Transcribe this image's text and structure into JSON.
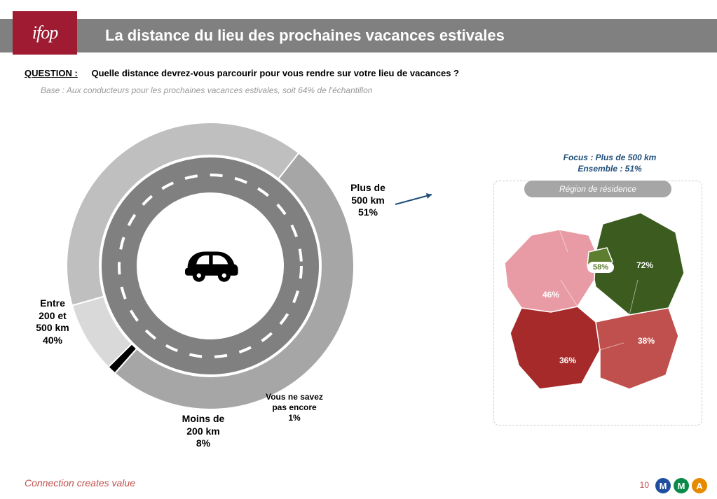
{
  "header": {
    "title": "La distance du lieu des prochaines vacances estivales"
  },
  "logo": {
    "text": "ifop"
  },
  "question": {
    "label": "QUESTION :",
    "text": "Quelle distance devrez-vous parcourir pour vous rendre sur votre lieu de vacances ?",
    "base": "Base : Aux conducteurs pour les prochaines vacances estivales, soit 64% de l'échantillon"
  },
  "donut": {
    "type": "donut",
    "inner_bg": "#ffffff",
    "road_color": "#808080",
    "road_dash_color": "#ffffff",
    "segments": [
      {
        "key": "plus500",
        "label_lines": [
          "Plus de",
          "500 km",
          "51%"
        ],
        "value": 51,
        "color": "#a6a6a6"
      },
      {
        "key": "ne_sait",
        "label_lines": [
          "Vous ne savez",
          "pas encore",
          "1%"
        ],
        "value": 1,
        "color": "#000000",
        "small": true
      },
      {
        "key": "moins200",
        "label_lines": [
          "Moins de",
          "200 km",
          "8%"
        ],
        "value": 8,
        "color": "#d9d9d9"
      },
      {
        "key": "entre",
        "label_lines": [
          "Entre",
          "200 et",
          "500 km",
          "40%"
        ],
        "value": 40,
        "color": "#bfbfbf"
      }
    ],
    "start_angle_deg": -52
  },
  "focus": {
    "line1": "Focus : Plus de 500 km",
    "line2": "Ensemble : 51%",
    "region_title": "Région de résidence"
  },
  "map": {
    "regions": [
      {
        "key": "northeast",
        "label": "72%",
        "color": "#3b5b1f"
      },
      {
        "key": "idf",
        "label": "58%",
        "color": "#5d7d2f",
        "badge": true
      },
      {
        "key": "northwest",
        "label": "46%",
        "color": "#e89ba4"
      },
      {
        "key": "southeast",
        "label": "38%",
        "color": "#c0504d"
      },
      {
        "key": "southwest",
        "label": "36%",
        "color": "#a72a2a"
      }
    ]
  },
  "footer": {
    "tag": "Connection creates value",
    "page": "10",
    "logos": [
      {
        "letter": "M",
        "bg": "#1f4e9e"
      },
      {
        "letter": "M",
        "bg": "#0a8a4a"
      },
      {
        "letter": "A",
        "bg": "#e68a00"
      }
    ]
  },
  "colors": {
    "header_bar": "#808080",
    "logo_bg": "#9e1b32",
    "accent_red": "#c0504d"
  }
}
